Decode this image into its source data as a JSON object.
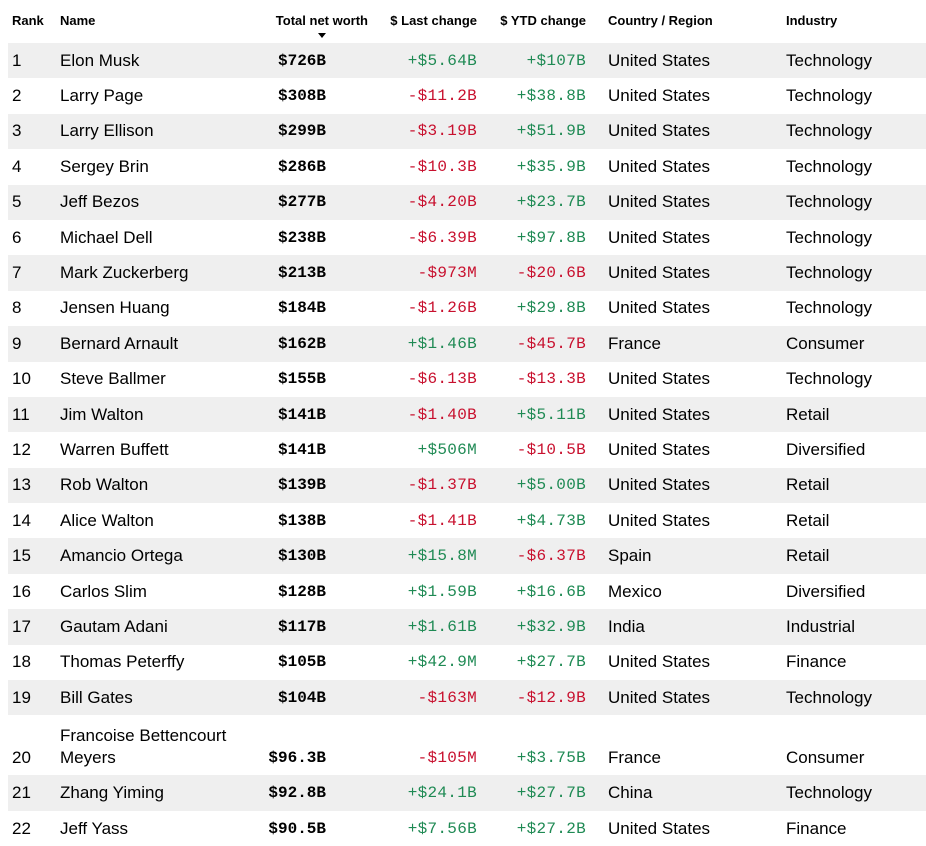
{
  "header": {
    "rank": "Rank",
    "name": "Name",
    "net_worth": "Total net worth",
    "last_change": "$ Last change",
    "ytd_change": "$ YTD change",
    "country": "Country / Region",
    "industry": "Industry"
  },
  "colors": {
    "positive": "#1f8a54",
    "negative": "#c8102e",
    "stripe": "#efefef"
  },
  "rows": [
    {
      "rank": "1",
      "name": "Elon Musk",
      "worth": "$726B",
      "last": "+$5.64B",
      "ytd": "+$107B",
      "country": "United States",
      "industry": "Technology"
    },
    {
      "rank": "2",
      "name": "Larry Page",
      "worth": "$308B",
      "last": "-$11.2B",
      "ytd": "+$38.8B",
      "country": "United States",
      "industry": "Technology"
    },
    {
      "rank": "3",
      "name": "Larry Ellison",
      "worth": "$299B",
      "last": "-$3.19B",
      "ytd": "+$51.9B",
      "country": "United States",
      "industry": "Technology"
    },
    {
      "rank": "4",
      "name": "Sergey Brin",
      "worth": "$286B",
      "last": "-$10.3B",
      "ytd": "+$35.9B",
      "country": "United States",
      "industry": "Technology"
    },
    {
      "rank": "5",
      "name": "Jeff Bezos",
      "worth": "$277B",
      "last": "-$4.20B",
      "ytd": "+$23.7B",
      "country": "United States",
      "industry": "Technology"
    },
    {
      "rank": "6",
      "name": "Michael Dell",
      "worth": "$238B",
      "last": "-$6.39B",
      "ytd": "+$97.8B",
      "country": "United States",
      "industry": "Technology"
    },
    {
      "rank": "7",
      "name": "Mark Zuckerberg",
      "worth": "$213B",
      "last": "-$973M",
      "ytd": "-$20.6B",
      "country": "United States",
      "industry": "Technology"
    },
    {
      "rank": "8",
      "name": "Jensen Huang",
      "worth": "$184B",
      "last": "-$1.26B",
      "ytd": "+$29.8B",
      "country": "United States",
      "industry": "Technology"
    },
    {
      "rank": "9",
      "name": "Bernard Arnault",
      "worth": "$162B",
      "last": "+$1.46B",
      "ytd": "-$45.7B",
      "country": "France",
      "industry": "Consumer"
    },
    {
      "rank": "10",
      "name": "Steve Ballmer",
      "worth": "$155B",
      "last": "-$6.13B",
      "ytd": "-$13.3B",
      "country": "United States",
      "industry": "Technology"
    },
    {
      "rank": "11",
      "name": "Jim Walton",
      "worth": "$141B",
      "last": "-$1.40B",
      "ytd": "+$5.11B",
      "country": "United States",
      "industry": "Retail"
    },
    {
      "rank": "12",
      "name": "Warren Buffett",
      "worth": "$141B",
      "last": "+$506M",
      "ytd": "-$10.5B",
      "country": "United States",
      "industry": "Diversified"
    },
    {
      "rank": "13",
      "name": "Rob Walton",
      "worth": "$139B",
      "last": "-$1.37B",
      "ytd": "+$5.00B",
      "country": "United States",
      "industry": "Retail"
    },
    {
      "rank": "14",
      "name": "Alice Walton",
      "worth": "$138B",
      "last": "-$1.41B",
      "ytd": "+$4.73B",
      "country": "United States",
      "industry": "Retail"
    },
    {
      "rank": "15",
      "name": "Amancio Ortega",
      "worth": "$130B",
      "last": "+$15.8M",
      "ytd": "-$6.37B",
      "country": "Spain",
      "industry": "Retail"
    },
    {
      "rank": "16",
      "name": "Carlos Slim",
      "worth": "$128B",
      "last": "+$1.59B",
      "ytd": "+$16.6B",
      "country": "Mexico",
      "industry": "Diversified"
    },
    {
      "rank": "17",
      "name": "Gautam Adani",
      "worth": "$117B",
      "last": "+$1.61B",
      "ytd": "+$32.9B",
      "country": "India",
      "industry": "Industrial"
    },
    {
      "rank": "18",
      "name": "Thomas Peterffy",
      "worth": "$105B",
      "last": "+$42.9M",
      "ytd": "+$27.7B",
      "country": "United States",
      "industry": "Finance"
    },
    {
      "rank": "19",
      "name": "Bill Gates",
      "worth": "$104B",
      "last": "-$163M",
      "ytd": "-$12.9B",
      "country": "United States",
      "industry": "Technology"
    },
    {
      "rank": "20",
      "name": "Francoise Bettencourt Meyers",
      "worth": "$96.3B",
      "last": "-$105M",
      "ytd": "+$3.75B",
      "country": "France",
      "industry": "Consumer"
    },
    {
      "rank": "21",
      "name": "Zhang Yiming",
      "worth": "$92.8B",
      "last": "+$24.1B",
      "ytd": "+$27.7B",
      "country": "China",
      "industry": "Technology"
    },
    {
      "rank": "22",
      "name": "Jeff Yass",
      "worth": "$90.5B",
      "last": "+$7.56B",
      "ytd": "+$27.2B",
      "country": "United States",
      "industry": "Finance"
    }
  ]
}
